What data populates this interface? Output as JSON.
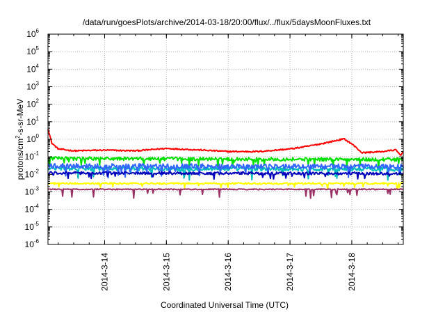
{
  "chart_data": {
    "type": "line",
    "title": "/data/run/goesPlots/archive/2014-03-18/20:00/flux/../flux/5daysMoonFluxes.txt",
    "xlabel": "Coordinated Universal Time (UTC)",
    "ylabel_main": "protons/cm",
    "ylabel_sup": "2",
    "ylabel_rest": "-s-sr-MeV",
    "y_scale": "log",
    "ylim": [
      1e-06,
      1000000.0
    ],
    "y_ticks": [
      {
        "base": "10",
        "exp": "6",
        "value": 1000000.0
      },
      {
        "base": "10",
        "exp": "5",
        "value": 100000.0
      },
      {
        "base": "10",
        "exp": "4",
        "value": 10000.0
      },
      {
        "base": "10",
        "exp": "3",
        "value": 1000.0
      },
      {
        "base": "10",
        "exp": "2",
        "value": 100.0
      },
      {
        "base": "10",
        "exp": "1",
        "value": 10.0
      },
      {
        "base": "10",
        "exp": "0",
        "value": 1.0
      },
      {
        "base": "10",
        "exp": "-1",
        "value": 0.1
      },
      {
        "base": "10",
        "exp": "-2",
        "value": 0.01
      },
      {
        "base": "10",
        "exp": "-3",
        "value": 0.001
      },
      {
        "base": "10",
        "exp": "-4",
        "value": 0.0001
      },
      {
        "base": "10",
        "exp": "-5",
        "value": 1e-05
      },
      {
        "base": "10",
        "exp": "-6",
        "value": 1e-06
      }
    ],
    "xlim": [
      "2014-03-13T02:00",
      "2014-03-18T20:00"
    ],
    "x_ticks": [
      {
        "label": "2014-3-14",
        "time": "2014-03-14T00:00"
      },
      {
        "label": "2014-3-15",
        "time": "2014-03-15T00:00"
      },
      {
        "label": "2014-3-16",
        "time": "2014-03-16T00:00"
      },
      {
        "label": "2014-3-17",
        "time": "2014-03-17T00:00"
      },
      {
        "label": "2014-3-18",
        "time": "2014-03-18T00:00"
      }
    ],
    "grid": true,
    "series": [
      {
        "color": "#ff0000",
        "width": 2,
        "noise": 0.04,
        "dips": 0,
        "profile": [
          [
            "2014-03-13T02:00",
            4.0
          ],
          [
            "2014-03-13T03:30",
            0.6
          ],
          [
            "2014-03-13T06:00",
            0.28
          ],
          [
            "2014-03-13T12:00",
            0.22
          ],
          [
            "2014-03-14T00:00",
            0.24
          ],
          [
            "2014-03-14T12:00",
            0.22
          ],
          [
            "2014-03-15T00:00",
            0.3
          ],
          [
            "2014-03-15T12:00",
            0.25
          ],
          [
            "2014-03-16T00:00",
            0.2
          ],
          [
            "2014-03-16T12:00",
            0.2
          ],
          [
            "2014-03-17T00:00",
            0.28
          ],
          [
            "2014-03-17T06:00",
            0.38
          ],
          [
            "2014-03-17T12:00",
            0.55
          ],
          [
            "2014-03-17T18:00",
            0.85
          ],
          [
            "2014-03-17T21:00",
            1.05
          ],
          [
            "2014-03-18T00:00",
            0.55
          ],
          [
            "2014-03-18T04:00",
            0.17
          ],
          [
            "2014-03-18T12:00",
            0.2
          ],
          [
            "2014-03-18T17:00",
            0.25
          ],
          [
            "2014-03-18T19:00",
            0.12
          ],
          [
            "2014-03-18T20:00",
            0.2
          ]
        ]
      },
      {
        "color": "#00e000",
        "width": 2,
        "noise": 0.1,
        "dips": 0.5,
        "profile": [
          [
            "2014-03-13T02:00",
            0.08
          ],
          [
            "2014-03-18T20:00",
            0.07
          ]
        ]
      },
      {
        "color": "#00bbbb",
        "width": 2,
        "noise": 0.12,
        "dips": 0.6,
        "profile": [
          [
            "2014-03-13T02:00",
            0.022
          ],
          [
            "2014-03-18T20:00",
            0.02
          ]
        ]
      },
      {
        "color": "#3366ff",
        "width": 2,
        "noise": 0.14,
        "dips": 0.6,
        "profile": [
          [
            "2014-03-13T02:00",
            0.03
          ],
          [
            "2014-03-18T20:00",
            0.028
          ]
        ]
      },
      {
        "color": "#0000bb",
        "width": 2,
        "noise": 0.08,
        "dips": 0.4,
        "profile": [
          [
            "2014-03-13T02:00",
            0.012
          ],
          [
            "2014-03-18T20:00",
            0.011
          ]
        ]
      },
      {
        "color": "#ffff00",
        "width": 2,
        "noise": 0.05,
        "dips": 0.3,
        "profile": [
          [
            "2014-03-13T02:00",
            0.003
          ],
          [
            "2014-03-18T20:00",
            0.003
          ]
        ]
      },
      {
        "color": "#993366",
        "width": 2,
        "noise": 0.03,
        "dips": 0.5,
        "profile": [
          [
            "2014-03-13T02:00",
            0.0014
          ],
          [
            "2014-03-18T20:00",
            0.0014
          ]
        ]
      }
    ]
  }
}
